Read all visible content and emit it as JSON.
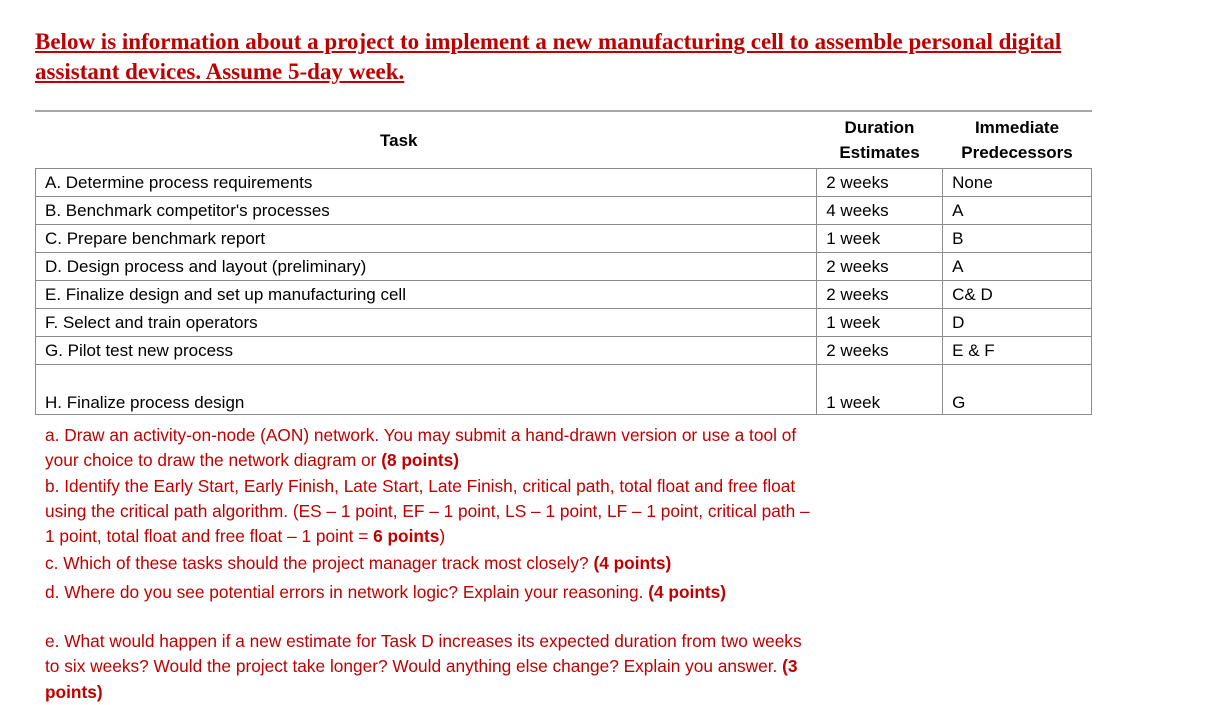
{
  "title": {
    "line1": "Below is information about a project to implement a new manufacturing cell to assemble personal digital",
    "line2": "assistant devices. Assume 5-day week."
  },
  "table": {
    "headers": {
      "task": "Task",
      "duration_1": "Duration",
      "duration_2": "Estimates",
      "pred_1": "Immediate",
      "pred_2": "Predecessors"
    },
    "rows": [
      {
        "task": "A. Determine process requirements",
        "duration": "2 weeks",
        "predecessors": "None"
      },
      {
        "task": "B. Benchmark competitor's processes",
        "duration": "4 weeks",
        "predecessors": "A"
      },
      {
        "task": "C. Prepare benchmark report",
        "duration": "1 week",
        "predecessors": "B"
      },
      {
        "task": "D. Design process and layout (preliminary)",
        "duration": "2 weeks",
        "predecessors": "A"
      },
      {
        "task": "E. Finalize design and set up manufacturing cell",
        "duration": "2 weeks",
        "predecessors": "C& D"
      },
      {
        "task": "F. Select and train operators",
        "duration": "1 week",
        "predecessors": "D"
      },
      {
        "task": "G. Pilot test new process",
        "duration": "2 weeks",
        "predecessors": "E & F"
      },
      {
        "task": "H. Finalize process design",
        "duration": "1 week",
        "predecessors": "G"
      }
    ]
  },
  "questions": {
    "a": {
      "text": "a. Draw an activity-on-node (AON) network. You may submit a hand-drawn version or use a tool of your choice to draw  the network diagram or ",
      "points": "(8 points)"
    },
    "b": {
      "text": "b. Identify the Early Start, Early Finish, Late Start, Late Finish, critical path, total float and free float using the critical path algorithm. (ES – 1 point, EF – 1 point, LS – 1 point, LF – 1 point, critical path – 1 point, total float and free float – 1 point = ",
      "points": "6 points",
      "tail": ")"
    },
    "c": {
      "text": "c. Which of these tasks should the project manager track most closely? ",
      "points": "(4 points)"
    },
    "d": {
      "text": "d. Where do you see potential errors in network logic? Explain your reasoning. ",
      "points": "(4 points)"
    },
    "e": {
      "text": "e. What would happen if a new estimate for Task D increases its expected duration from two weeks to six weeks? Would the project take longer? Would anything else change? Explain you answer. ",
      "points": "(3 points)"
    }
  },
  "colors": {
    "accent_red": "#c00000",
    "border": "#8c8c8c"
  }
}
